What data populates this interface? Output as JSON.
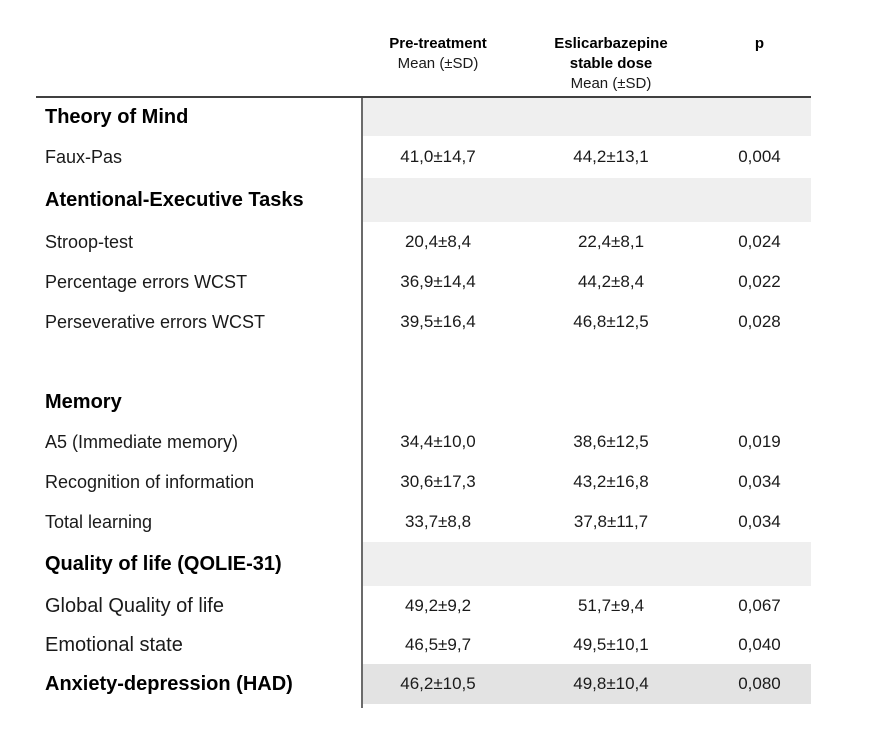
{
  "header": {
    "col_pre": {
      "title": "Pre-treatment",
      "subtitle": "Mean (±SD)"
    },
    "col_esl": {
      "title": "Eslicarbazepine",
      "subtitle": "stable dose",
      "subtitle2": "Mean (±SD)"
    },
    "col_p": {
      "title": "p"
    }
  },
  "rows": [
    {
      "label": "Theory of Mind"
    },
    {
      "label": "Faux-Pas",
      "pre": "41,0±14,7",
      "esl": "44,2±13,1",
      "p": "0,004"
    },
    {
      "label": "Atentional-Executive Tasks"
    },
    {
      "label": "Stroop-test",
      "pre": "20,4±8,4",
      "esl": "22,4±8,1",
      "p": "0,024"
    },
    {
      "label": "Percentage errors WCST",
      "pre": "36,9±14,4",
      "esl": "44,2±8,4",
      "p": "0,022"
    },
    {
      "label": "Perseverative errors WCST",
      "pre": "39,5±16,4",
      "esl": "46,8±12,5",
      "p": "0,028"
    },
    {
      "label": "Memory"
    },
    {
      "label": "A5 (Immediate memory)",
      "pre": "34,4±10,0",
      "esl": "38,6±12,5",
      "p": "0,019"
    },
    {
      "label": "Recognition of information",
      "pre": "30,6±17,3",
      "esl": "43,2±16,8",
      "p": "0,034"
    },
    {
      "label": "Total learning",
      "pre": "33,7±8,8",
      "esl": "37,8±11,7",
      "p": "0,034"
    },
    {
      "label": "Quality of life (QOLIE-31)"
    },
    {
      "label": "Global Quality of life",
      "pre": "49,2±9,2",
      "esl": "51,7±9,4",
      "p": "0,067"
    },
    {
      "label": "Emotional state",
      "pre": "46,5±9,7",
      "esl": "49,5±10,1",
      "p": "0,040"
    },
    {
      "label": "Anxiety-depression (HAD)",
      "pre": "46,2±10,5",
      "esl": "49,8±10,4",
      "p": "0,080"
    }
  ],
  "colors": {
    "section_band": "#efefef",
    "bottom_row_band": "#e3e3e3",
    "divider_line": "#6b6b6b",
    "header_rule": "#404040",
    "text": "#1a1a1a"
  }
}
